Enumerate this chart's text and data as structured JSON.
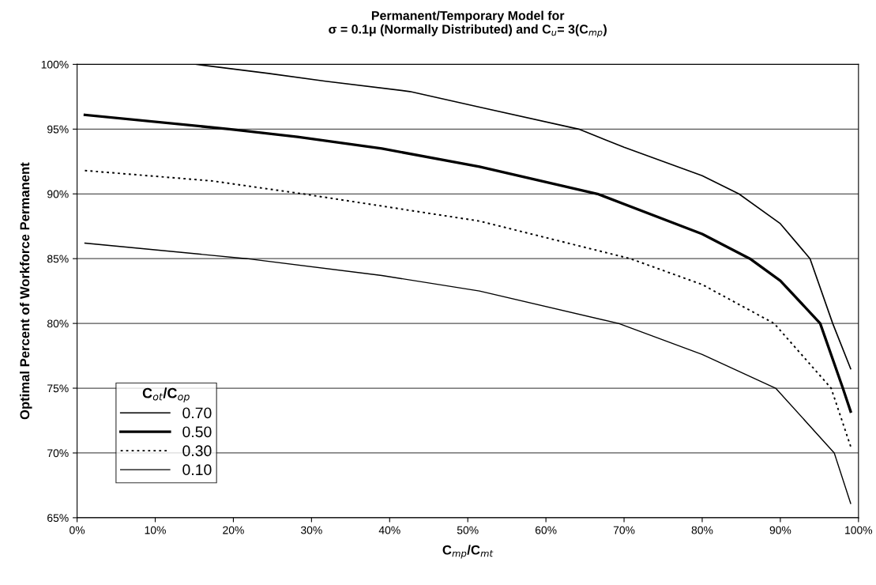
{
  "chart_data": {
    "type": "line",
    "title": "Permanent/Temporary Model for\nσ = 0.1μ (Normally Distributed) and C$_{u}$= 3(C$_{mp}$)",
    "xlabel": "C$_{mp}$/C$_{mt}$",
    "ylabel": "Optimal Percent of Workforce Permanent",
    "legend_title": "C$_{ot}$/C$_{op}$",
    "series": [
      {
        "name": "0.70",
        "color": "#000000",
        "line_style": "solid",
        "x": [
          15.2,
          24.5,
          31.8,
          42.6,
          51.5,
          64.2,
          70,
          80,
          84.7,
          90,
          93.8,
          96.7,
          99
        ],
        "values": [
          100,
          99.3,
          98.7,
          97.9,
          96.7,
          95,
          93.6,
          91.4,
          90,
          87.7,
          85,
          80,
          76.5
        ]
      },
      {
        "name": "0.50",
        "color": "#000000",
        "line_style": "solid",
        "x": [
          1,
          19.5,
          28.2,
          39,
          51.5,
          66.6,
          80,
          86.1,
          90,
          95.1,
          98,
          99
        ],
        "values": [
          96.1,
          95,
          94.4,
          93.5,
          92.1,
          90,
          86.9,
          85,
          83.3,
          80,
          75,
          73.2
        ]
      },
      {
        "name": "0.30",
        "color": "#000000",
        "line_style": "dotted",
        "x": [
          1,
          17.3,
          28.9,
          51.5,
          70.8,
          80,
          89.2,
          96.5,
          99
        ],
        "values": [
          91.8,
          91,
          90,
          87.9,
          85,
          83,
          80,
          75,
          70.5
        ]
      },
      {
        "name": "0.10",
        "color": "#000000",
        "line_style": "solid",
        "x": [
          1,
          21.7,
          39,
          51.5,
          69.3,
          80,
          89.4,
          96.9,
          99
        ],
        "values": [
          86.2,
          85,
          83.7,
          82.5,
          80,
          77.6,
          75,
          70,
          66.1
        ]
      }
    ],
    "xlim": [
      0,
      100
    ],
    "xticks": [
      {
        "value": 0,
        "label": "0%"
      },
      {
        "value": 10,
        "label": "10%"
      },
      {
        "value": 20,
        "label": "20%"
      },
      {
        "value": 30,
        "label": "30%"
      },
      {
        "value": 40,
        "label": "40%"
      },
      {
        "value": 50,
        "label": "50%"
      },
      {
        "value": 60,
        "label": "60%"
      },
      {
        "value": 70,
        "label": "70%"
      },
      {
        "value": 80,
        "label": "80%"
      },
      {
        "value": 90,
        "label": "90%"
      },
      {
        "value": 100,
        "label": "100%"
      }
    ],
    "ylim": [
      65,
      100
    ],
    "yticks": [
      {
        "value": 65,
        "label": "65%"
      },
      {
        "value": 70,
        "label": "70%"
      },
      {
        "value": 75,
        "label": "75%"
      },
      {
        "value": 80,
        "label": "80%"
      },
      {
        "value": 85,
        "label": "85%"
      },
      {
        "value": 90,
        "label": "90%"
      },
      {
        "value": 95,
        "label": "95%"
      },
      {
        "value": 100,
        "label": "100%"
      }
    ],
    "grid": "y",
    "legend": "bottom left"
  }
}
